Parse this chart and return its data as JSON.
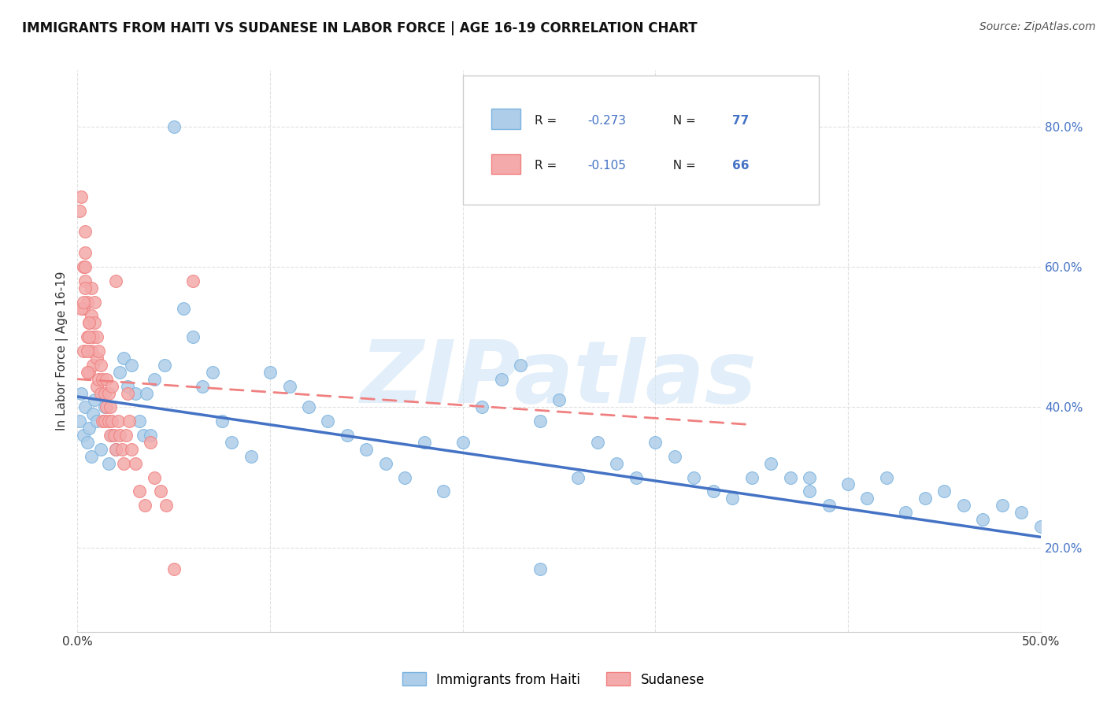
{
  "title": "IMMIGRANTS FROM HAITI VS SUDANESE IN LABOR FORCE | AGE 16-19 CORRELATION CHART",
  "source": "Source: ZipAtlas.com",
  "ylabel": "In Labor Force | Age 16-19",
  "xlim": [
    0.0,
    0.5
  ],
  "ylim": [
    0.08,
    0.88
  ],
  "xticks": [
    0.0,
    0.1,
    0.2,
    0.3,
    0.4,
    0.5
  ],
  "xticklabels": [
    "0.0%",
    "",
    "",
    "",
    "",
    "50.0%"
  ],
  "yticks_right": [
    0.2,
    0.4,
    0.6,
    0.8
  ],
  "yticklabels_right": [
    "20.0%",
    "40.0%",
    "60.0%",
    "80.0%"
  ],
  "background_color": "#ffffff",
  "grid_color": "#e0e0e0",
  "haiti_color": "#7ab3e0",
  "haiti_color_fill": "#aecde8",
  "sudanese_color": "#f08080",
  "sudanese_color_fill": "#f4aaaa",
  "haiti_R": -0.273,
  "haiti_N": 77,
  "sudanese_R": -0.105,
  "sudanese_N": 66,
  "watermark": "ZIPatlas",
  "legend_label_haiti": "Immigrants from Haiti",
  "legend_label_sudanese": "Sudanese",
  "haiti_x": [
    0.001,
    0.002,
    0.003,
    0.004,
    0.005,
    0.006,
    0.007,
    0.008,
    0.009,
    0.01,
    0.012,
    0.014,
    0.016,
    0.018,
    0.02,
    0.022,
    0.024,
    0.026,
    0.028,
    0.03,
    0.032,
    0.034,
    0.036,
    0.038,
    0.04,
    0.045,
    0.05,
    0.055,
    0.06,
    0.065,
    0.07,
    0.075,
    0.08,
    0.09,
    0.1,
    0.11,
    0.12,
    0.13,
    0.14,
    0.15,
    0.16,
    0.17,
    0.18,
    0.19,
    0.2,
    0.21,
    0.22,
    0.23,
    0.24,
    0.25,
    0.26,
    0.27,
    0.28,
    0.29,
    0.3,
    0.31,
    0.32,
    0.33,
    0.34,
    0.35,
    0.36,
    0.37,
    0.38,
    0.39,
    0.4,
    0.41,
    0.42,
    0.43,
    0.44,
    0.45,
    0.46,
    0.47,
    0.48,
    0.49,
    0.5,
    0.24,
    0.38
  ],
  "haiti_y": [
    0.38,
    0.42,
    0.36,
    0.4,
    0.35,
    0.37,
    0.33,
    0.39,
    0.41,
    0.38,
    0.34,
    0.4,
    0.32,
    0.36,
    0.34,
    0.45,
    0.47,
    0.43,
    0.46,
    0.42,
    0.38,
    0.36,
    0.42,
    0.36,
    0.44,
    0.46,
    0.8,
    0.54,
    0.5,
    0.43,
    0.45,
    0.38,
    0.35,
    0.33,
    0.45,
    0.43,
    0.4,
    0.38,
    0.36,
    0.34,
    0.32,
    0.3,
    0.35,
    0.28,
    0.35,
    0.4,
    0.44,
    0.46,
    0.38,
    0.41,
    0.3,
    0.35,
    0.32,
    0.3,
    0.35,
    0.33,
    0.3,
    0.28,
    0.27,
    0.3,
    0.32,
    0.3,
    0.28,
    0.26,
    0.29,
    0.27,
    0.3,
    0.25,
    0.27,
    0.28,
    0.26,
    0.24,
    0.26,
    0.25,
    0.23,
    0.17,
    0.3
  ],
  "sudanese_x": [
    0.001,
    0.002,
    0.003,
    0.003,
    0.004,
    0.004,
    0.005,
    0.005,
    0.006,
    0.006,
    0.007,
    0.007,
    0.007,
    0.008,
    0.008,
    0.009,
    0.009,
    0.01,
    0.01,
    0.01,
    0.011,
    0.011,
    0.012,
    0.012,
    0.013,
    0.013,
    0.014,
    0.014,
    0.015,
    0.015,
    0.016,
    0.016,
    0.017,
    0.017,
    0.018,
    0.018,
    0.019,
    0.02,
    0.021,
    0.022,
    0.023,
    0.024,
    0.025,
    0.026,
    0.027,
    0.028,
    0.03,
    0.032,
    0.035,
    0.038,
    0.04,
    0.043,
    0.046,
    0.05,
    0.002,
    0.003,
    0.06,
    0.003,
    0.02,
    0.004,
    0.004,
    0.004,
    0.005,
    0.005,
    0.006,
    0.006
  ],
  "sudanese_y": [
    0.68,
    0.7,
    0.54,
    0.6,
    0.58,
    0.65,
    0.55,
    0.5,
    0.52,
    0.45,
    0.57,
    0.53,
    0.48,
    0.5,
    0.46,
    0.55,
    0.52,
    0.47,
    0.43,
    0.5,
    0.48,
    0.44,
    0.46,
    0.42,
    0.44,
    0.38,
    0.42,
    0.38,
    0.44,
    0.4,
    0.42,
    0.38,
    0.4,
    0.36,
    0.38,
    0.43,
    0.36,
    0.34,
    0.38,
    0.36,
    0.34,
    0.32,
    0.36,
    0.42,
    0.38,
    0.34,
    0.32,
    0.28,
    0.26,
    0.35,
    0.3,
    0.28,
    0.26,
    0.17,
    0.54,
    0.48,
    0.58,
    0.55,
    0.58,
    0.6,
    0.57,
    0.62,
    0.48,
    0.45,
    0.52,
    0.5
  ],
  "haiti_trend_x": [
    0.0,
    0.5
  ],
  "haiti_trend_y": [
    0.415,
    0.215
  ],
  "sudanese_trend_x": [
    0.0,
    0.35
  ],
  "sudanese_trend_y": [
    0.44,
    0.375
  ]
}
